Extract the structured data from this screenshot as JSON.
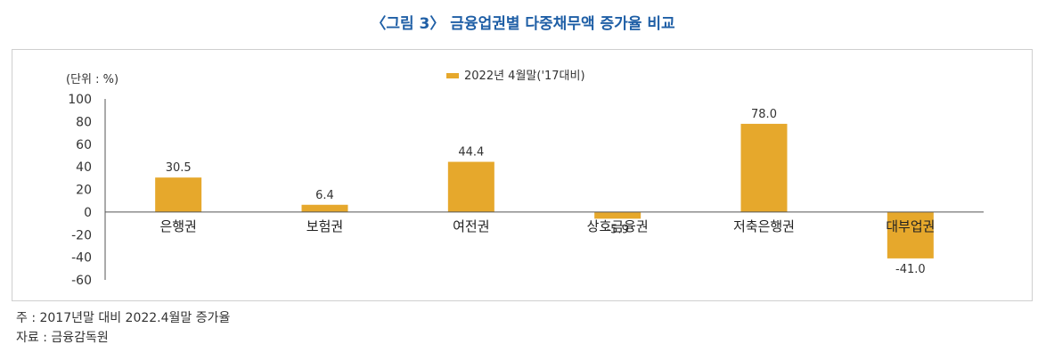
{
  "figure": {
    "title": "〈그림 3〉 금융업권별 다중채무액 증가율 비교"
  },
  "chart_data": {
    "type": "bar",
    "unit_label": "(단위 : %)",
    "categories": [
      "은행권",
      "보험권",
      "여전권",
      "상호금융권",
      "저축은행권",
      "대부업권"
    ],
    "series": [
      {
        "name": "2022년 4월말('17대비)",
        "values": [
          30.5,
          6.4,
          44.4,
          -5.9,
          78.0,
          -41.0
        ],
        "data_labels": [
          "30.5",
          "6.4",
          "44.4",
          "-5.9",
          "78.0",
          "-41.0"
        ]
      }
    ],
    "ylim": [
      -60,
      100
    ],
    "yticks": [
      100,
      80,
      60,
      40,
      20,
      0,
      -20,
      -40,
      -60
    ],
    "ytick_labels": [
      "100",
      "80",
      "60",
      "40",
      "20",
      "0",
      "-20",
      "-40",
      "-60"
    ],
    "legend_position": "top-center",
    "grid": false,
    "colors": {
      "bar": "#e6a82c",
      "axis": "#555555"
    }
  },
  "notes": {
    "note": "주 : 2017년말 대비 2022.4월말 증가율",
    "source": "자료 : 금융감독원"
  }
}
